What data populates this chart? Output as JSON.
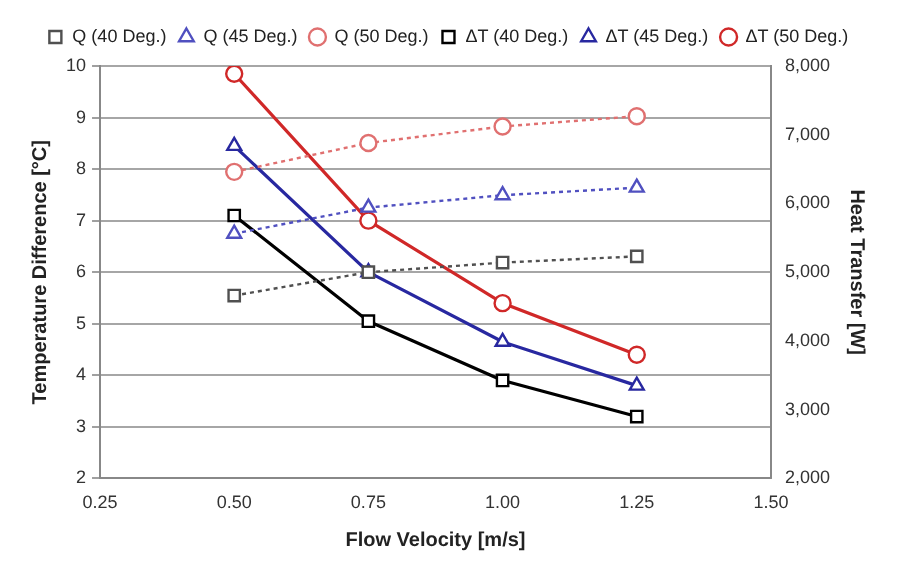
{
  "chart_data": {
    "type": "line",
    "xlabel": "Flow Velocity [m/s]",
    "ylabel": "Temperature Difference [°C]",
    "y2label": "Heat Transfer [W]",
    "x": [
      0.5,
      0.75,
      1.0,
      1.25
    ],
    "xlim": [
      0.25,
      1.5
    ],
    "xticks": [
      {
        "value": 0.25,
        "label": "0.25"
      },
      {
        "value": 0.5,
        "label": "0.50"
      },
      {
        "value": 0.75,
        "label": "0.75"
      },
      {
        "value": 1,
        "label": "1.00"
      },
      {
        "value": 1.25,
        "label": "1.25"
      },
      {
        "value": 1.5,
        "label": "1.50"
      }
    ],
    "ylim": [
      2,
      10
    ],
    "yticks": [
      2,
      3,
      4,
      5,
      6,
      7,
      8,
      9,
      10
    ],
    "y2lim": [
      2000,
      8000
    ],
    "y2ticks": [
      {
        "value": 2000,
        "label": "2,000"
      },
      {
        "value": 3000,
        "label": "3,000"
      },
      {
        "value": 4000,
        "label": "4,000"
      },
      {
        "value": 5000,
        "label": "5,000"
      },
      {
        "value": 6000,
        "label": "6,000"
      },
      {
        "value": 7000,
        "label": "7,000"
      },
      {
        "value": 8000,
        "label": "8,000"
      }
    ],
    "grid": "y",
    "legend": "top",
    "series": [
      {
        "name": "ΔT (40 Deg.)",
        "color": "#000000",
        "marker": "square",
        "line_style": "solid",
        "values": [
          7.1,
          5.05,
          3.9,
          3.2
        ]
      },
      {
        "name": "ΔT (45 Deg.)",
        "color": "#2828a0",
        "marker": "triangle",
        "line_style": "solid",
        "values": [
          8.45,
          6.0,
          4.65,
          3.8
        ]
      },
      {
        "name": "ΔT (50 Deg.)",
        "color": "#d02828",
        "marker": "circle",
        "line_style": "solid",
        "values": [
          9.85,
          7.0,
          5.4,
          4.4
        ]
      },
      {
        "name": "Q (40 Deg.)",
        "color": "#505050",
        "marker": "square",
        "line_style": "dotted",
        "axis": "y2",
        "values": [
          4660,
          5000,
          5140,
          5230
        ]
      },
      {
        "name": "Q (45 Deg.)",
        "color": "#5050c0",
        "marker": "triangle",
        "line_style": "dotted",
        "axis": "y2",
        "values": [
          5560,
          5940,
          6120,
          6230
        ]
      },
      {
        "name": "Q (50 Deg.)",
        "color": "#e07070",
        "marker": "circle",
        "line_style": "dotted",
        "axis": "y2",
        "values": [
          6460,
          6880,
          7120,
          7270
        ]
      }
    ]
  }
}
